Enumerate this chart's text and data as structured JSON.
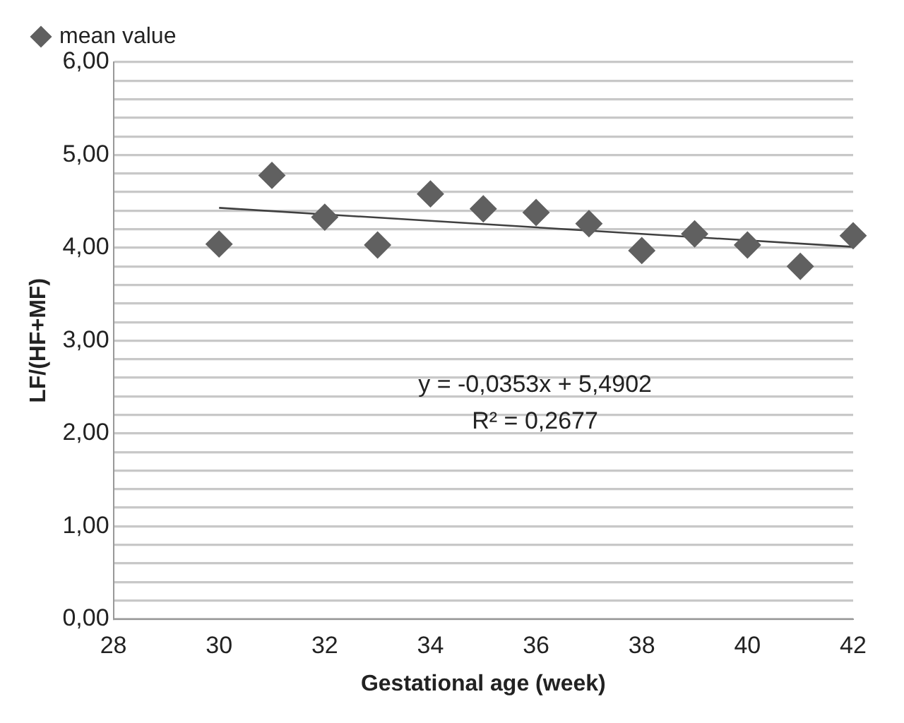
{
  "chart_data": {
    "type": "scatter",
    "xlabel": "Gestational age (week)",
    "ylabel": "LF/(HF+MF)",
    "series": [
      {
        "name": "mean value",
        "color": "#606060",
        "marker": "diamond",
        "x": [
          30,
          31,
          32,
          33,
          34,
          35,
          36,
          37,
          38,
          39,
          40,
          41,
          42
        ],
        "values": [
          4.04,
          4.78,
          4.33,
          4.03,
          4.58,
          4.42,
          4.38,
          4.26,
          3.97,
          4.15,
          4.03,
          3.8,
          4.13
        ]
      },
      {
        "type": "line",
        "color": "#404040",
        "marker": "none",
        "line_style": "solid",
        "x": [
          30,
          42
        ],
        "values": [
          4.43,
          4.01
        ]
      }
    ],
    "xlim": [
      28,
      42
    ],
    "xticks": [
      28,
      30,
      32,
      34,
      36,
      38,
      40,
      42
    ],
    "ylim": [
      0,
      6
    ],
    "yticks": [
      {
        "value": 0,
        "label": "0,00"
      },
      {
        "value": 0.2,
        "label": null
      },
      {
        "value": 0.4,
        "label": null
      },
      {
        "value": 0.6,
        "label": null
      },
      {
        "value": 0.8,
        "label": null
      },
      {
        "value": 1,
        "label": "1,00"
      },
      {
        "value": 1.2,
        "label": null
      },
      {
        "value": 1.4,
        "label": null
      },
      {
        "value": 1.6,
        "label": null
      },
      {
        "value": 1.8,
        "label": null
      },
      {
        "value": 2,
        "label": "2,00"
      },
      {
        "value": 2.2,
        "label": null
      },
      {
        "value": 2.4,
        "label": null
      },
      {
        "value": 2.6,
        "label": null
      },
      {
        "value": 2.8,
        "label": null
      },
      {
        "value": 3,
        "label": "3,00"
      },
      {
        "value": 3.2,
        "label": null
      },
      {
        "value": 3.4,
        "label": null
      },
      {
        "value": 3.6,
        "label": null
      },
      {
        "value": 3.8,
        "label": null
      },
      {
        "value": 4,
        "label": "4,00"
      },
      {
        "value": 4.2,
        "label": null
      },
      {
        "value": 4.4,
        "label": null
      },
      {
        "value": 4.6,
        "label": null
      },
      {
        "value": 4.8,
        "label": null
      },
      {
        "value": 5,
        "label": "5,00"
      },
      {
        "value": 5.2,
        "label": null
      },
      {
        "value": 5.4,
        "label": null
      },
      {
        "value": 5.6,
        "label": null
      },
      {
        "value": 5.8,
        "label": null
      },
      {
        "value": 6,
        "label": "6,00"
      }
    ],
    "grid": "y",
    "legend": "top left",
    "annotations": [
      "y = -0,0353x + 5,4902",
      "R² = 0,2677"
    ]
  }
}
